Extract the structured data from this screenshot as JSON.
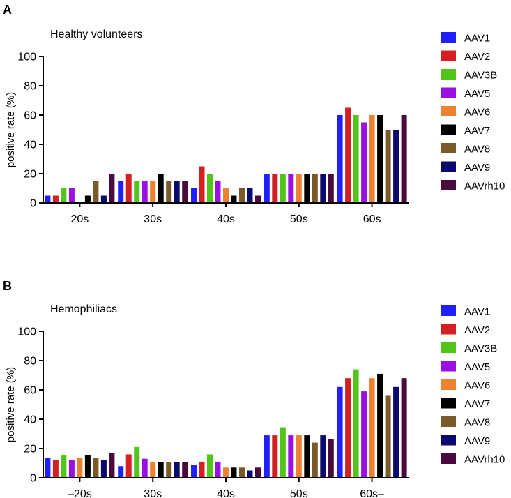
{
  "legend_series": [
    {
      "name": "AAV1",
      "color": "#1f1fff"
    },
    {
      "name": "AAV2",
      "color": "#d42020"
    },
    {
      "name": "AAV3B",
      "color": "#52c41a"
    },
    {
      "name": "AAV5",
      "color": "#9a10e0"
    },
    {
      "name": "AAV6",
      "color": "#ec8230"
    },
    {
      "name": "AAV7",
      "color": "#000000"
    },
    {
      "name": "AAV8",
      "color": "#7a5a28"
    },
    {
      "name": "AAV9",
      "color": "#0a0a6e"
    },
    {
      "name": "AAVrh10",
      "color": "#4a0a3e"
    }
  ],
  "chart_data": [
    {
      "panel": "A",
      "type": "bar",
      "title": "Healthy volunteers",
      "ylabel": "positive rate (%)",
      "xlabel": "",
      "ylim": [
        0,
        100
      ],
      "yticks": [
        "0",
        "20",
        "40",
        "60",
        "80",
        "100"
      ],
      "categories": [
        "20s",
        "30s",
        "40s",
        "50s",
        "60s"
      ],
      "series": [
        {
          "name": "AAV1",
          "values": [
            5,
            15,
            10,
            20,
            60
          ]
        },
        {
          "name": "AAV2",
          "values": [
            5,
            20,
            25,
            20,
            65
          ]
        },
        {
          "name": "AAV3B",
          "values": [
            10,
            15,
            20,
            20,
            60
          ]
        },
        {
          "name": "AAV5",
          "values": [
            10,
            15,
            15,
            20,
            55
          ]
        },
        {
          "name": "AAV6",
          "values": [
            0,
            15,
            10,
            20,
            60
          ]
        },
        {
          "name": "AAV7",
          "values": [
            5,
            20,
            5,
            20,
            60
          ]
        },
        {
          "name": "AAV8",
          "values": [
            15,
            15,
            10,
            20,
            50
          ]
        },
        {
          "name": "AAV9",
          "values": [
            5,
            15,
            10,
            20,
            50
          ]
        },
        {
          "name": "AAVrh10",
          "values": [
            20,
            15,
            5,
            20,
            60
          ]
        }
      ]
    },
    {
      "panel": "B",
      "type": "bar",
      "title": "Hemophiliacs",
      "ylabel": "positive rate (%)",
      "xlabel": "",
      "ylim": [
        0,
        100
      ],
      "yticks": [
        "0",
        "20",
        "40",
        "60",
        "80",
        "100"
      ],
      "categories": [
        "–20s",
        "30s",
        "40s",
        "50s",
        "60s–"
      ],
      "series": [
        {
          "name": "AAV1",
          "values": [
            13.5,
            8,
            9,
            29,
            62
          ]
        },
        {
          "name": "AAV2",
          "values": [
            12,
            16,
            11,
            29,
            68
          ]
        },
        {
          "name": "AAV3B",
          "values": [
            15.5,
            21,
            16,
            34.5,
            74
          ]
        },
        {
          "name": "AAV5",
          "values": [
            12,
            13,
            11,
            29,
            59
          ]
        },
        {
          "name": "AAV6",
          "values": [
            13.5,
            10.5,
            7,
            29,
            68
          ]
        },
        {
          "name": "AAV7",
          "values": [
            15.5,
            10.5,
            7,
            29,
            71
          ]
        },
        {
          "name": "AAV8",
          "values": [
            13.5,
            10.5,
            7,
            24,
            56
          ]
        },
        {
          "name": "AAV9",
          "values": [
            12,
            10.5,
            5,
            29,
            62
          ]
        },
        {
          "name": "AAVrh10",
          "values": [
            17,
            10.5,
            7,
            26.5,
            68
          ]
        }
      ]
    }
  ]
}
